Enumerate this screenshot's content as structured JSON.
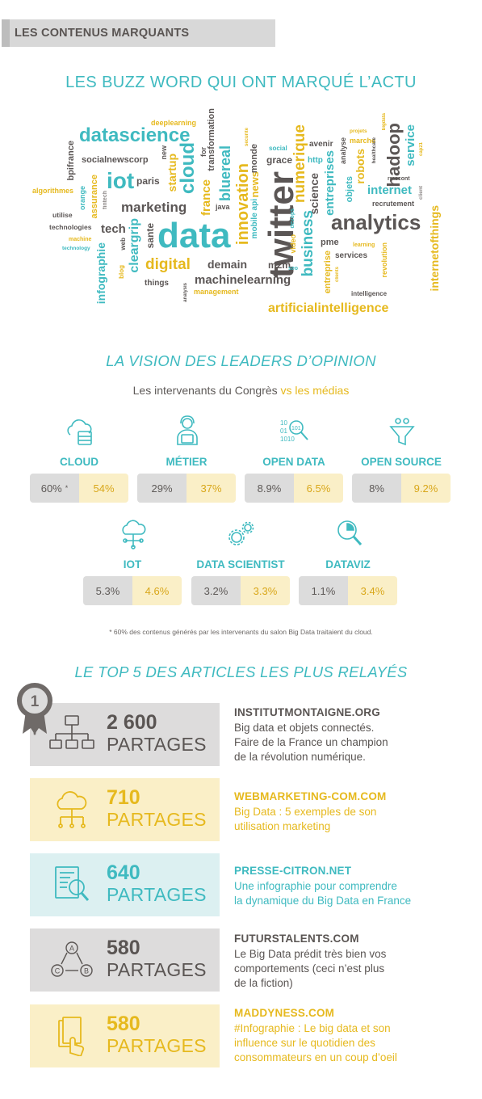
{
  "header": {
    "label": "LES CONTENUS MARQUANTS"
  },
  "buzz": {
    "title": "LES BUZZ WORD QUI ONT MARQUÉ L’ACTU",
    "words": {
      "datascience": "datascience",
      "deeplearning": "deeplearning",
      "transformation": "transformation",
      "bpifrance": "bpifrance",
      "socialnewscorp": "socialnewscorp",
      "iot": "iot",
      "paris": "paris",
      "startup": "startup",
      "cloud": "cloud",
      "algorithmes": "algorithmes",
      "assurance": "assurance",
      "orange": "orange",
      "fintech": "fintech",
      "marketing": "marketing",
      "utilise": "utilise",
      "technologies": "technologies",
      "tech": "tech",
      "machine": "machine",
      "technology": "technology",
      "infographie": "infographie",
      "web": "web",
      "cleargrip": "cleargrip",
      "sante": "sante",
      "data": "data",
      "france": "france",
      "digital": "digital",
      "blog": "blog",
      "things": "things",
      "analysis": "analysis",
      "management": "management",
      "machinelearning": "machinelearning",
      "demain": "demain",
      "java": "java",
      "bluereal": "bluereal",
      "for": "for",
      "new": "new",
      "innovation": "innovation",
      "news": "news",
      "mobile_api": "mobile api",
      "monde": "monde",
      "securite": "securite",
      "social": "social",
      "grace": "grace",
      "twitter": "twitter",
      "m2m": "m2m",
      "seo": "seo",
      "numerique": "numerique",
      "business": "business",
      "science": "science",
      "devops": "devops",
      "video": "video",
      "pme": "pme",
      "artificialintelligence": "artificialintelligence",
      "avenir": "avenir",
      "http": "http",
      "entreprises": "entreprises",
      "entreprise": "entreprise",
      "clients": "clients",
      "analyse": "analyse",
      "projets": "projets",
      "marche": "marche",
      "robots": "robots",
      "objets": "objets",
      "analytics": "analytics",
      "services": "services",
      "learning": "learning",
      "intelligence": "intelligence",
      "hadoop": "hadoop",
      "healthcare": "healthcare",
      "bigdata": "bigdata",
      "service": "service",
      "cap21": "cap21",
      "rmscont": "rmscont",
      "internet": "internet",
      "recrutement": "recrutement",
      "client": "client",
      "revolution": "revolution",
      "internetofthings": "internetofthings",
      "pdf": "pdf",
      "business2": "business"
    }
  },
  "vision": {
    "title": "LA VISION DES LEADERS D’OPINION",
    "subtitle_a": "Les intervenants du Congrès ",
    "subtitle_vs": "vs ",
    "subtitle_b": "les médias",
    "categories": [
      {
        "label": "CLOUD",
        "a": "60%",
        "star": "*",
        "b": "54%"
      },
      {
        "label": "MÉTIER",
        "a": "29%",
        "b": "37%"
      },
      {
        "label": "OPEN DATA",
        "a": "8.9%",
        "b": "6.5%"
      },
      {
        "label": "OPEN SOURCE",
        "a": "8%",
        "b": "9.2%"
      },
      {
        "label": "IOT",
        "a": "5.3%",
        "b": "4.6%"
      },
      {
        "label": "DATA SCIENTIST",
        "a": "3.2%",
        "b": "3.3%"
      },
      {
        "label": "DATAVIZ",
        "a": "1.1%",
        "b": "3.4%"
      }
    ],
    "footnote": "* 60% des contenus générés par les intervenants du salon Big Data traitaient du cloud."
  },
  "top5": {
    "title": "LE TOP 5 DES ARTICLES LES PLUS RELAYÉS",
    "medal": "1",
    "unit": "PARTAGES",
    "items": [
      {
        "count": "2 600",
        "site": "INSTITUTMONTAIGNE.ORG",
        "desc": "Big data et objets connectés.\nFaire de la France un champion\nde la révolution numérique."
      },
      {
        "count": "710",
        "site": "WEBMARKETING-COM.COM",
        "desc": "Big Data : 5 exemples de son\nutilisation marketing"
      },
      {
        "count": "640",
        "site": "PRESSE-CITRON.NET",
        "desc": "Une infographie pour comprendre\nla dynamique du Big Data en France"
      },
      {
        "count": "580",
        "site": "FUTURSTALENTS.COM",
        "desc": "Le Big Data prédit très bien vos\ncomportements (ceci n’est plus\nde la fiction)"
      },
      {
        "count": "580",
        "site": "MADDYNESS.COM",
        "desc": "#Infographie : Le big data et son\ninfluence sur le quotidien des\nconsommateurs en un coup d’oeil"
      }
    ]
  },
  "colors": {
    "teal": "#3fbac0",
    "yellow": "#e6b91e",
    "gray": "#5a5553"
  }
}
